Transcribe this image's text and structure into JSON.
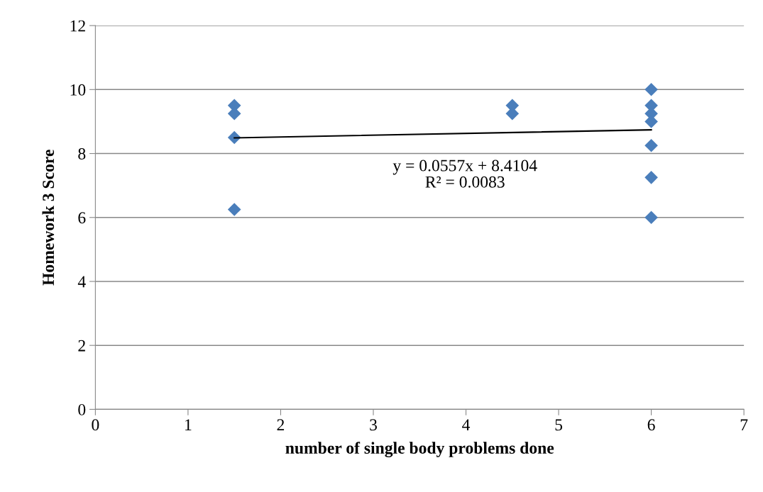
{
  "chart_data": {
    "type": "scatter",
    "xlabel": "number of single body problems done",
    "ylabel": "Homework 3 Score",
    "x": [
      1.5,
      1.5,
      1.5,
      1.5,
      4.5,
      4.5,
      6,
      6,
      6,
      6,
      6,
      6,
      6
    ],
    "series": [
      {
        "color": "#4a7ebb",
        "marker": "diamond",
        "values": [
          9.5,
          9.25,
          8.5,
          6.25,
          9.5,
          9.25,
          10,
          9.5,
          9.25,
          9,
          8.25,
          7.25,
          6
        ]
      },
      {
        "type": "line",
        "color": "#000000",
        "marker": "none",
        "line_style": "solid",
        "x": [
          1.5,
          6
        ],
        "values": [
          8.49,
          8.74
        ]
      }
    ],
    "annotations": [
      "y = 0.0557x + 8.4104\nR² = 0.0083"
    ],
    "xlim": [
      0,
      7
    ],
    "xticks": [
      0,
      1,
      2,
      3,
      4,
      5,
      6,
      7
    ],
    "ylim": [
      0,
      12
    ],
    "yticks": [
      0,
      2,
      4,
      6,
      8,
      10,
      12
    ],
    "grid": "y",
    "legend": false
  }
}
